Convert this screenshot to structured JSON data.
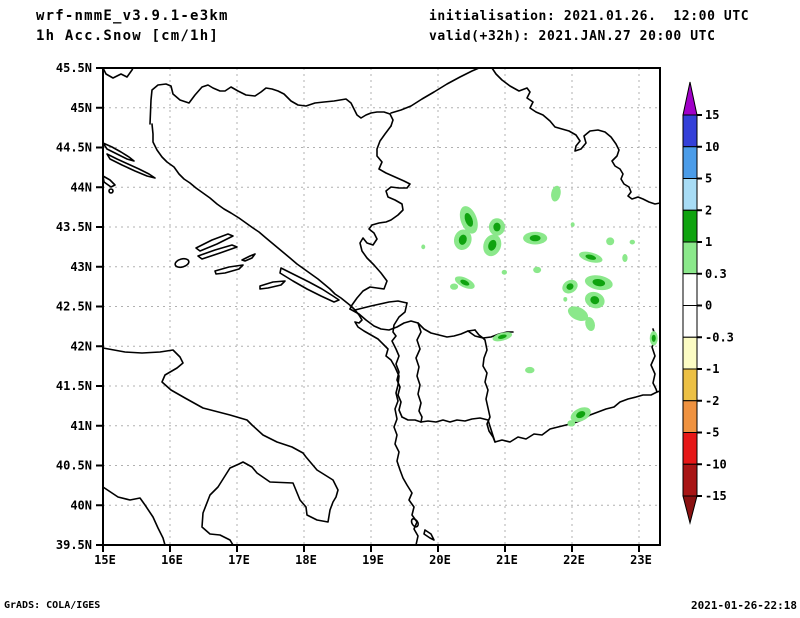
{
  "header": {
    "model": "wrf-nmmE_v3.9.1-e3km",
    "product": "1h Acc.Snow [cm/1h]",
    "init_label": "initialisation: 2021.01.26.  12:00 UTC",
    "valid_label": "valid(+32h): 2021.JAN.27 20:00 UTC"
  },
  "footer": {
    "left": "GrADS: COLA/IGES",
    "right": "2021-01-26-22:18"
  },
  "chart_data": {
    "type": "heatmap",
    "subtype": "filled-contour-map",
    "title": "1h Acc.Snow [cm/1h]",
    "model": "wrf-nmmE_v3.9.1-e3km",
    "initialisation": "2021.01.26. 12:00 UTC",
    "valid": "2021.JAN.27 20:00 UTC",
    "lon_range": [
      15.0,
      23.31
    ],
    "lat_range": [
      39.5,
      45.5
    ],
    "grid": "dotted",
    "lat_ticks": [
      {
        "v": 45.5,
        "label": "45.5N"
      },
      {
        "v": 45.0,
        "label": "45N"
      },
      {
        "v": 44.5,
        "label": "44.5N"
      },
      {
        "v": 44.0,
        "label": "44N"
      },
      {
        "v": 43.5,
        "label": "43.5N"
      },
      {
        "v": 43.0,
        "label": "43N"
      },
      {
        "v": 42.5,
        "label": "42.5N"
      },
      {
        "v": 42.0,
        "label": "42N"
      },
      {
        "v": 41.5,
        "label": "41.5N"
      },
      {
        "v": 41.0,
        "label": "41N"
      },
      {
        "v": 40.5,
        "label": "40.5N"
      },
      {
        "v": 40.0,
        "label": "40N"
      },
      {
        "v": 39.5,
        "label": "39.5N"
      }
    ],
    "lon_ticks": [
      {
        "v": 15,
        "label": "15E"
      },
      {
        "v": 16,
        "label": "16E"
      },
      {
        "v": 17,
        "label": "17E"
      },
      {
        "v": 18,
        "label": "18E"
      },
      {
        "v": 19,
        "label": "19E"
      },
      {
        "v": 20,
        "label": "20E"
      },
      {
        "v": 21,
        "label": "21E"
      },
      {
        "v": 22,
        "label": "22E"
      },
      {
        "v": 23,
        "label": "23E"
      }
    ],
    "colorbar": {
      "position": "right",
      "levels": [
        "15",
        "10",
        "5",
        "2",
        "1",
        "0.3",
        "0",
        "-0.3",
        "-1",
        "-2",
        "-5",
        "-10",
        "-15"
      ],
      "segment_colors_top_to_bottom": [
        "#3440d8",
        "#4b9ce8",
        "#a8dcf5",
        "#0fa30f",
        "#8be88b",
        "#ffffff",
        "#ffffff",
        "#fcfcc4",
        "#ecc044",
        "#ef9240",
        "#e61717",
        "#a81515"
      ],
      "arrow_top_color": "#a000c8",
      "arrow_bottom_color": "#8a1111"
    },
    "patch_light_color": "#8be88b",
    "patch_core_color": "#0fa30f",
    "snow_patches": [
      {
        "lon": 20.46,
        "lat": 43.59,
        "rx": 0.12,
        "ry": 0.18,
        "rot": -20,
        "core": true
      },
      {
        "lon": 20.37,
        "lat": 43.34,
        "rx": 0.13,
        "ry": 0.13,
        "rot": 15,
        "core": true
      },
      {
        "lon": 20.88,
        "lat": 43.5,
        "rx": 0.12,
        "ry": 0.11,
        "rot": 0,
        "core": true
      },
      {
        "lon": 20.81,
        "lat": 43.27,
        "rx": 0.13,
        "ry": 0.14,
        "rot": 20,
        "core": true
      },
      {
        "lon": 21.45,
        "lat": 43.36,
        "rx": 0.18,
        "ry": 0.08,
        "rot": 0,
        "core": true
      },
      {
        "lon": 21.76,
        "lat": 43.92,
        "rx": 0.07,
        "ry": 0.1,
        "rot": 10,
        "core": false
      },
      {
        "lon": 22.28,
        "lat": 43.12,
        "rx": 0.18,
        "ry": 0.06,
        "rot": 15,
        "core": true
      },
      {
        "lon": 22.57,
        "lat": 43.32,
        "rx": 0.06,
        "ry": 0.05,
        "rot": 0,
        "core": false
      },
      {
        "lon": 22.9,
        "lat": 43.31,
        "rx": 0.04,
        "ry": 0.03,
        "rot": 0,
        "core": false
      },
      {
        "lon": 22.79,
        "lat": 43.11,
        "rx": 0.04,
        "ry": 0.05,
        "rot": 0,
        "core": false
      },
      {
        "lon": 22.01,
        "lat": 43.53,
        "rx": 0.03,
        "ry": 0.03,
        "rot": 0,
        "core": false
      },
      {
        "lon": 21.97,
        "lat": 42.75,
        "rx": 0.12,
        "ry": 0.08,
        "rot": -30,
        "core": true
      },
      {
        "lon": 22.4,
        "lat": 42.8,
        "rx": 0.21,
        "ry": 0.09,
        "rot": 10,
        "core": true
      },
      {
        "lon": 22.34,
        "lat": 42.58,
        "rx": 0.15,
        "ry": 0.1,
        "rot": 20,
        "core": true
      },
      {
        "lon": 22.09,
        "lat": 42.41,
        "rx": 0.16,
        "ry": 0.08,
        "rot": 25,
        "core": false
      },
      {
        "lon": 22.27,
        "lat": 42.28,
        "rx": 0.07,
        "ry": 0.09,
        "rot": -15,
        "core": false
      },
      {
        "lon": 21.9,
        "lat": 42.59,
        "rx": 0.03,
        "ry": 0.03,
        "rot": 0,
        "core": false
      },
      {
        "lon": 20.4,
        "lat": 42.8,
        "rx": 0.16,
        "ry": 0.06,
        "rot": 25,
        "core": true
      },
      {
        "lon": 20.24,
        "lat": 42.75,
        "rx": 0.06,
        "ry": 0.04,
        "rot": 0,
        "core": false
      },
      {
        "lon": 19.78,
        "lat": 43.25,
        "rx": 0.03,
        "ry": 0.03,
        "rot": 0,
        "core": false
      },
      {
        "lon": 20.99,
        "lat": 42.93,
        "rx": 0.04,
        "ry": 0.03,
        "rot": 0,
        "core": false
      },
      {
        "lon": 21.48,
        "lat": 42.96,
        "rx": 0.06,
        "ry": 0.04,
        "rot": 0,
        "core": false
      },
      {
        "lon": 20.96,
        "lat": 42.12,
        "rx": 0.15,
        "ry": 0.05,
        "rot": -15,
        "core": true
      },
      {
        "lon": 23.22,
        "lat": 42.1,
        "rx": 0.06,
        "ry": 0.09,
        "rot": 0,
        "core": true
      },
      {
        "lon": 21.37,
        "lat": 41.7,
        "rx": 0.07,
        "ry": 0.04,
        "rot": 0,
        "core": false
      },
      {
        "lon": 22.13,
        "lat": 41.14,
        "rx": 0.16,
        "ry": 0.08,
        "rot": -25,
        "core": true
      },
      {
        "lon": 21.99,
        "lat": 41.03,
        "rx": 0.06,
        "ry": 0.04,
        "rot": 0,
        "core": false
      }
    ]
  }
}
